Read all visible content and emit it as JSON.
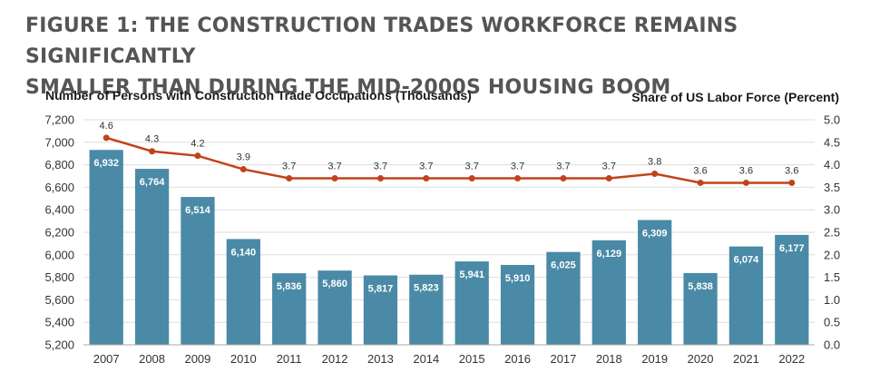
{
  "header": {
    "title_line1": "FIGURE 1:  THE CONSTRUCTION TRADES WORKFORCE REMAINS SIGNIFICANTLY",
    "title_line2": "SMALLER THAN DURING THE MID-2000S HOUSING BOOM"
  },
  "chart_data": {
    "type": "bar",
    "categories": [
      "2007",
      "2008",
      "2009",
      "2010",
      "2011",
      "2012",
      "2013",
      "2014",
      "2015",
      "2016",
      "2017",
      "2018",
      "2019",
      "2020",
      "2021",
      "2022"
    ],
    "ylabel": "Number of Persons with Construction Trade Occupations (Thousands)",
    "y2label": "Share of US Labor Force (Percent)",
    "ylim": [
      5200,
      7200
    ],
    "y2lim": [
      0.0,
      5.0
    ],
    "yticks": [
      "7,200",
      "7,000",
      "6,800",
      "6,600",
      "6,400",
      "6,200",
      "6,000",
      "5,800",
      "5,600",
      "5,400",
      "5,200"
    ],
    "y2ticks": [
      "5.0",
      "4.5",
      "4.0",
      "3.5",
      "3.0",
      "2.5",
      "2.0",
      "1.5",
      "1.0",
      "0.5",
      "0.0"
    ],
    "grid": true,
    "series": [
      {
        "type": "bar",
        "axis": "left",
        "values": [
          6932,
          6764,
          6514,
          6140,
          5836,
          5860,
          5817,
          5823,
          5941,
          5910,
          6025,
          6129,
          6309,
          5838,
          6074,
          6177
        ],
        "labels": [
          "6,932",
          "6,764",
          "6,514",
          "6,140",
          "5,836",
          "5,860",
          "5,817",
          "5,823",
          "5,941",
          "5,910",
          "6,025",
          "6,129",
          "6,309",
          "5,838",
          "6,074",
          "6,177"
        ]
      },
      {
        "type": "line",
        "axis": "right",
        "values": [
          4.6,
          4.3,
          4.2,
          3.9,
          3.7,
          3.7,
          3.7,
          3.7,
          3.7,
          3.7,
          3.7,
          3.7,
          3.8,
          3.6,
          3.6,
          3.6
        ],
        "labels": [
          "4.6",
          "4.3",
          "4.2",
          "3.9",
          "3.7",
          "3.7",
          "3.7",
          "3.7",
          "3.7",
          "3.7",
          "3.7",
          "3.7",
          "3.8",
          "3.6",
          "3.6",
          "3.6"
        ]
      }
    ],
    "colors": {
      "bar": "#4a8aa6",
      "line": "#c1431a",
      "grid": "#dddddd",
      "axis": "#aaaaaa"
    }
  }
}
